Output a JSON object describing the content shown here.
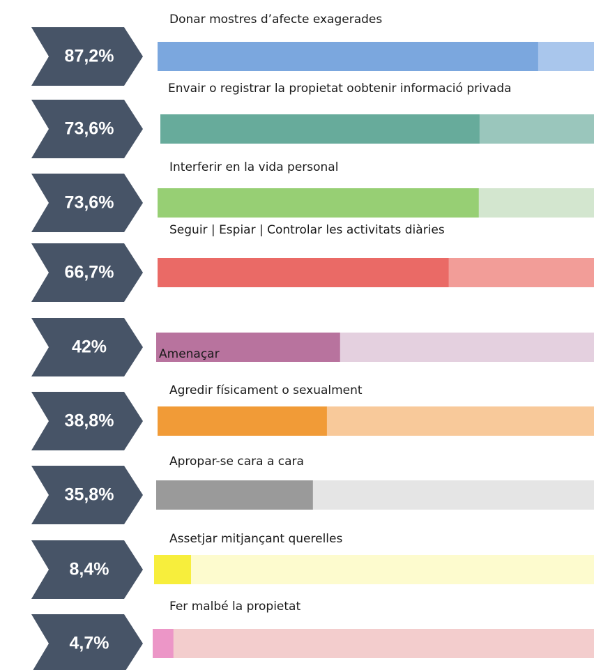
{
  "chart_data": {
    "type": "bar",
    "categories": [
      "Donar mostres d’afecte exagerades",
      "Envair o registrar la propietat oobtenir informació privada",
      "Interferir en la vida personal",
      "Seguir | Espiar | Controlar les activitats diàries",
      "Amenaçar",
      "Agredir físicament o sexualment",
      "Apropar-se cara a cara",
      "Assetjar mitjançant querelles",
      "Fer malbé la propietat"
    ],
    "values": [
      87.2,
      73.6,
      73.6,
      66.7,
      42,
      38.8,
      35.8,
      8.4,
      4.7
    ],
    "value_labels": [
      "87,2%",
      "73,6%",
      "73,6%",
      "66,7%",
      "42%",
      "38,8%",
      "35,8%",
      "8,4%",
      "4,7%"
    ],
    "colors": [
      "#7ba7de",
      "#67ab9b",
      "#97cf74",
      "#ea6a66",
      "#b8739e",
      "#f19b37",
      "#9a9a9a",
      "#f7ee3c",
      "#ec96c7"
    ],
    "track_colors": [
      "#a9c6ec",
      "#9ac6bc",
      "#d3e6cf",
      "#f29d98",
      "#e4d0df",
      "#f8c99a",
      "#e5e5e5",
      "#fdfbce",
      "#f3cdcd"
    ],
    "chevron_color": "#475467",
    "xlim": [
      0,
      100
    ]
  }
}
